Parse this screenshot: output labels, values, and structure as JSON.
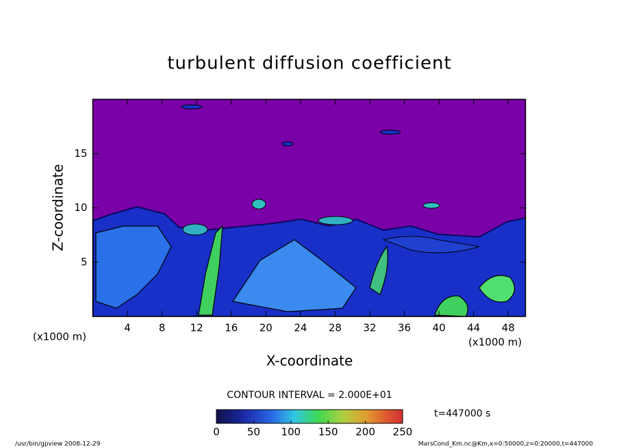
{
  "chart_data": {
    "type": "contour",
    "title": "turbulent diffusion coefficient",
    "xlabel": "X-coordinate",
    "ylabel": "Z-coordinate",
    "x_unit": "(x1000 m)",
    "xlim": [
      0,
      50
    ],
    "xticks": [
      4,
      8,
      12,
      16,
      20,
      24,
      28,
      32,
      36,
      40,
      44,
      48
    ],
    "ylim": [
      0,
      20
    ],
    "yticks": [
      5,
      10,
      15
    ],
    "contour_interval": "CONTOUR INTERVAL = 2.000E+01",
    "clim": [
      0,
      250
    ],
    "cticks": [
      0,
      50,
      100,
      150,
      200,
      250
    ],
    "time_label": "t=447000 s",
    "footer_left": "/usr/bin/gpview   2008-12-29",
    "footer_right": "MarsCond_Km.nc@Km,x=0:50000,z=0:20000,t=447000"
  }
}
